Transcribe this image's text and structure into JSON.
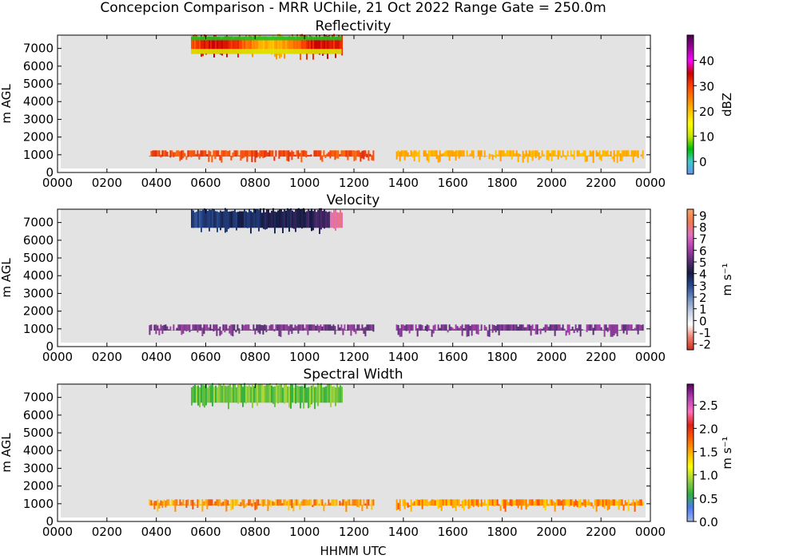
{
  "figure": {
    "title": "Concepcion Comparison - MRR UChile, 21 Oct 2022 Range Gate = 250.0m",
    "xlabel": "HHMM UTC"
  },
  "chart_data": [
    {
      "type": "heatmap",
      "title": "Reflectivity",
      "ylabel": "m AGL",
      "xticks": [
        "0000",
        "0200",
        "0400",
        "0600",
        "0800",
        "1000",
        "1200",
        "1400",
        "1600",
        "1800",
        "2000",
        "2200",
        "0000"
      ],
      "yticks": [
        0,
        1000,
        2000,
        3000,
        4000,
        5000,
        6000,
        7000
      ],
      "xlim_hours": [
        0,
        24
      ],
      "ylim": [
        0,
        7750
      ],
      "colorbar": {
        "label": "dBZ",
        "range": [
          -5,
          50
        ],
        "ticks": [
          "0",
          "10",
          "20",
          "30",
          "40"
        ],
        "tick_values": [
          0,
          10,
          20,
          30,
          40
        ],
        "stops": [
          "#6495ed",
          "#40c8c8",
          "#00c000",
          "#c8e600",
          "#ffff00",
          "#ffc000",
          "#ff8000",
          "#ff4000",
          "#c80000",
          "#ff00ff",
          "#9b009b",
          "#4b0050"
        ]
      },
      "segments": [
        {
          "name": "upper layer",
          "start_hour": 5.4,
          "end_hour": 11.5,
          "y_bottom": 6700,
          "y_top": 7550,
          "level": "25-32 dBZ"
        },
        {
          "name": "lower layer",
          "start_hour": 3.7,
          "end_hour": 12.8,
          "y_bottom": 900,
          "y_top": 1250,
          "level": "25-30 dBZ"
        },
        {
          "name": "lower layer",
          "start_hour": 13.7,
          "end_hour": 23.7,
          "y_bottom": 900,
          "y_top": 1250,
          "level": "~20 dBZ"
        }
      ]
    },
    {
      "type": "heatmap",
      "title": "Velocity",
      "ylabel": "m s⁻¹",
      "ylabel_left": "m AGL",
      "xticks": [
        "0000",
        "0200",
        "0400",
        "0600",
        "0800",
        "1000",
        "1200",
        "1400",
        "1600",
        "1800",
        "2000",
        "2200",
        "0000"
      ],
      "yticks": [
        0,
        1000,
        2000,
        3000,
        4000,
        5000,
        6000,
        7000
      ],
      "xlim_hours": [
        0,
        24
      ],
      "ylim": [
        0,
        7750
      ],
      "colorbar": {
        "label": "m s⁻¹",
        "range": [
          -2.5,
          9.5
        ],
        "ticks": [
          "-2",
          "-1",
          "0",
          "1",
          "2",
          "3",
          "4",
          "5",
          "6",
          "7",
          "8",
          "9"
        ],
        "tick_values": [
          -2,
          -1,
          0,
          1,
          2,
          3,
          4,
          5,
          6,
          7,
          8,
          9
        ],
        "stops": [
          "#d0301c",
          "#f08070",
          "#ffffff",
          "#c0cce0",
          "#7090c0",
          "#284a90",
          "#141a40",
          "#5a2e78",
          "#b040b0",
          "#e070c0",
          "#f07850",
          "#f8a060"
        ]
      },
      "segments": [
        {
          "name": "upper layer",
          "start_hour": 5.4,
          "end_hour": 11.5,
          "y_bottom": 6700,
          "y_top": 7550,
          "level": "2-5 m/s, up to 7 at end"
        },
        {
          "name": "lower layer",
          "start_hour": 3.7,
          "end_hour": 12.8,
          "y_bottom": 900,
          "y_top": 1250,
          "level": "~5 m/s"
        },
        {
          "name": "lower layer",
          "start_hour": 13.7,
          "end_hour": 23.7,
          "y_bottom": 900,
          "y_top": 1250,
          "level": "~5 m/s"
        }
      ]
    },
    {
      "type": "heatmap",
      "title": "Spectral Width",
      "ylabel": "m s⁻¹",
      "ylabel_left": "m AGL",
      "xticks": [
        "0000",
        "0200",
        "0400",
        "0600",
        "0800",
        "1000",
        "1200",
        "1400",
        "1600",
        "1800",
        "2000",
        "2200",
        "0000"
      ],
      "yticks": [
        0,
        1000,
        2000,
        3000,
        4000,
        5000,
        6000,
        7000
      ],
      "xlim_hours": [
        0,
        24
      ],
      "ylim": [
        0,
        7750
      ],
      "colorbar": {
        "label": "m s⁻¹",
        "range": [
          0,
          2.95
        ],
        "ticks": [
          "0.0",
          "0.5",
          "1.0",
          "1.5",
          "2.0",
          "2.5"
        ],
        "tick_values": [
          0,
          0.5,
          1.0,
          1.5,
          2.0,
          2.5
        ],
        "stops": [
          "#a0b4f0",
          "#4a7aee",
          "#30b040",
          "#9ad040",
          "#ffff00",
          "#ffb000",
          "#ff6000",
          "#e02010",
          "#ff70c0",
          "#b040b0",
          "#5a0060"
        ]
      },
      "segments": [
        {
          "name": "upper layer",
          "start_hour": 5.4,
          "end_hour": 11.5,
          "y_bottom": 6700,
          "y_top": 7550,
          "level": "0.3-0.9 m/s"
        },
        {
          "name": "lower layer",
          "start_hour": 3.7,
          "end_hour": 12.8,
          "y_bottom": 900,
          "y_top": 1250,
          "level": "1.2-2.0 m/s"
        },
        {
          "name": "lower layer",
          "start_hour": 13.7,
          "end_hour": 23.7,
          "y_bottom": 900,
          "y_top": 1250,
          "level": "1.5-2.0 m/s"
        }
      ]
    }
  ]
}
